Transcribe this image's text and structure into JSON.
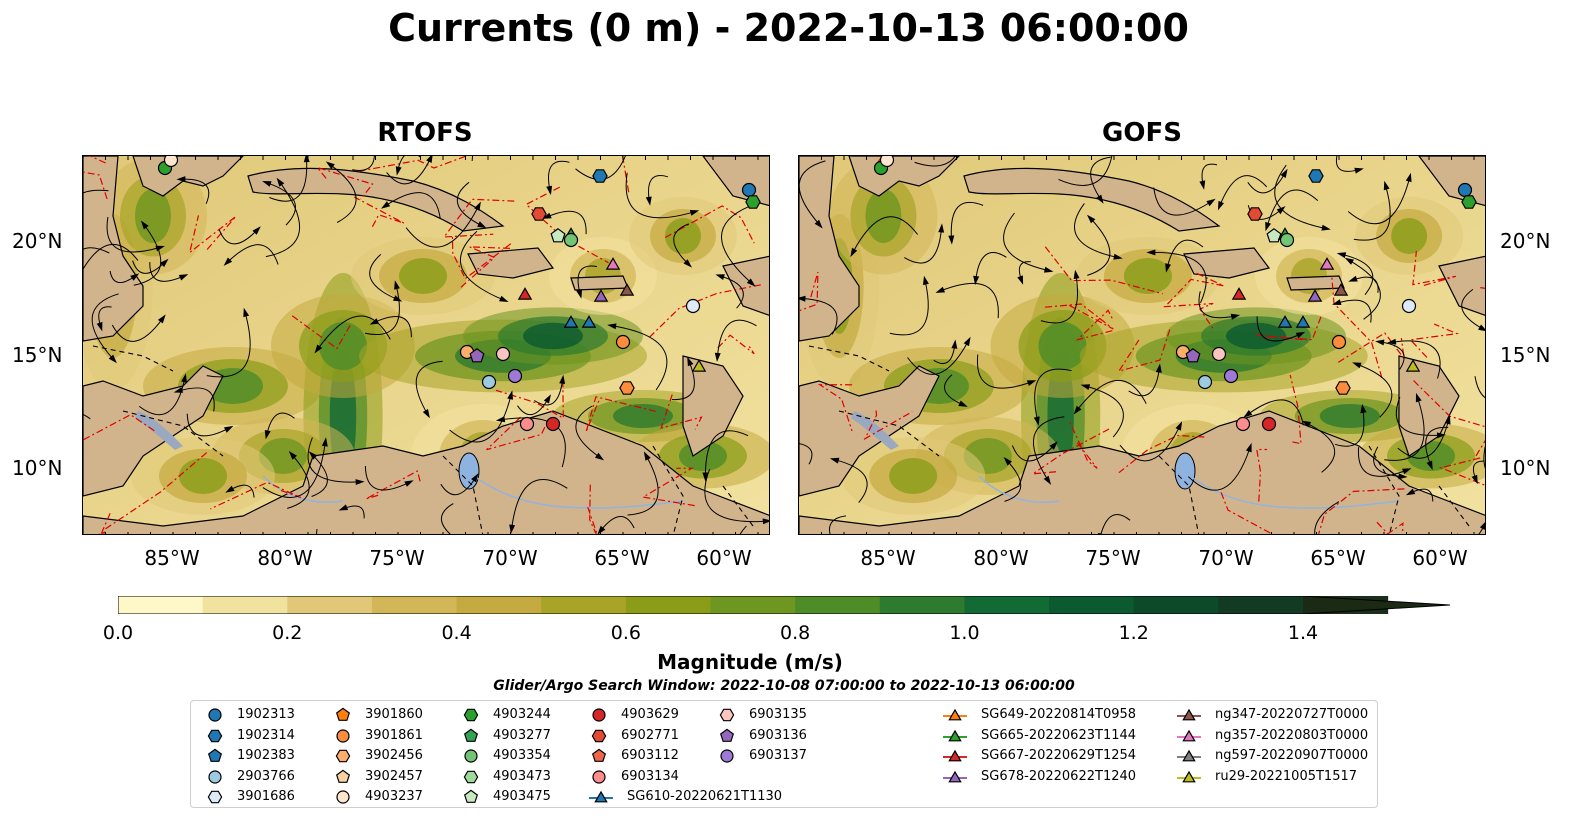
{
  "title": "Currents (0 m) - 2022-10-13 06:00:00",
  "panels": [
    {
      "title": "RTOFS"
    },
    {
      "title": "GOFS"
    }
  ],
  "lat_labels": [
    "20°N",
    "15°N",
    "10°N"
  ],
  "lon_labels": [
    "85°W",
    "80°W",
    "75°W",
    "70°W",
    "65°W",
    "60°W"
  ],
  "colorbar": {
    "label": "Magnitude (m/s)",
    "ticks": [
      "0.0",
      "0.2",
      "0.4",
      "0.6",
      "0.8",
      "1.0",
      "1.2",
      "1.4"
    ],
    "colors": [
      "#fef8c8",
      "#f2e2a0",
      "#e0c878",
      "#d2b658",
      "#c4aa40",
      "#a8a428",
      "#8a9c18",
      "#6e9620",
      "#4e8c28",
      "#2e7a2e",
      "#126a34",
      "#0b5a30",
      "#0d4a2a",
      "#133a22",
      "#1a2e1a",
      "#1a2a14"
    ]
  },
  "window": "Glider/Argo Search Window: 2022-10-08 07:00:00 to 2022-10-13 06:00:00",
  "legend": [
    {
      "label": "1902313",
      "shape": "circle",
      "color": "#1f77b4"
    },
    {
      "label": "1902314",
      "shape": "hexagon",
      "color": "#1f77b4"
    },
    {
      "label": "1902383",
      "shape": "pentagon",
      "color": "#1f77b4"
    },
    {
      "label": "2903766",
      "shape": "circle",
      "color": "#9ecae1"
    },
    {
      "label": "3901686",
      "shape": "hexagon",
      "color": "#deebf7"
    },
    {
      "label": "3901860",
      "shape": "pentagon",
      "color": "#ff7f0e"
    },
    {
      "label": "3901861",
      "shape": "circle",
      "color": "#fd8d3c"
    },
    {
      "label": "3902456",
      "shape": "hexagon",
      "color": "#fdae6b"
    },
    {
      "label": "3902457",
      "shape": "pentagon",
      "color": "#fdd0a2"
    },
    {
      "label": "4903237",
      "shape": "circle",
      "color": "#fee6ce"
    },
    {
      "label": "4903244",
      "shape": "hexagon",
      "color": "#2ca02c"
    },
    {
      "label": "4903277",
      "shape": "pentagon",
      "color": "#31a354"
    },
    {
      "label": "4903354",
      "shape": "circle",
      "color": "#74c476"
    },
    {
      "label": "4903473",
      "shape": "hexagon",
      "color": "#a1d99b"
    },
    {
      "label": "4903475",
      "shape": "pentagon",
      "color": "#c7e9c0"
    },
    {
      "label": "4903629",
      "shape": "circle",
      "color": "#d62728"
    },
    {
      "label": "6902771",
      "shape": "hexagon",
      "color": "#e34a33"
    },
    {
      "label": "6903112",
      "shape": "pentagon",
      "color": "#ef6548"
    },
    {
      "label": "6903134",
      "shape": "circle",
      "color": "#fc8d8d"
    },
    {
      "label": "SG610-20220621T1130",
      "shape": "triangle-line",
      "color": "#1f77b4"
    },
    {
      "label": "6903135",
      "shape": "hexagon",
      "color": "#fcc5c0"
    },
    {
      "label": "6903136",
      "shape": "pentagon",
      "color": "#9467bd"
    },
    {
      "label": "6903137",
      "shape": "circle",
      "color": "#9e7ad6"
    },
    {
      "label": "SG649-20220814T0958",
      "shape": "triangle-line",
      "color": "#ff7f0e"
    },
    {
      "label": "SG665-20220623T1144",
      "shape": "triangle-line",
      "color": "#2ca02c"
    },
    {
      "label": "SG667-20220629T1254",
      "shape": "triangle-line",
      "color": "#d62728"
    },
    {
      "label": "SG678-20220622T1240",
      "shape": "triangle-line",
      "color": "#9467bd"
    },
    {
      "label": "ng347-20220727T0000",
      "shape": "triangle-line",
      "color": "#8c564b"
    },
    {
      "label": "ng357-20220803T0000",
      "shape": "triangle-line",
      "color": "#e377c2"
    },
    {
      "label": "ng597-20220907T0000",
      "shape": "triangle-line",
      "color": "#7f7f7f"
    },
    {
      "label": "ru29-20221005T1517",
      "shape": "triangle-line",
      "color": "#bcbd22"
    }
  ],
  "colors": {
    "land": "#d2b48c",
    "water_body": "#8fb3e0",
    "eez": "#e00000",
    "stream": "#000000"
  }
}
